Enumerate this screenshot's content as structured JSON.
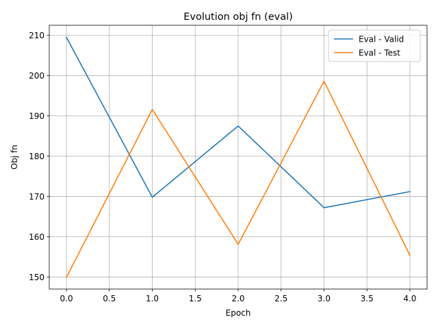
{
  "chart_data": {
    "type": "line",
    "title": "Evolution obj fn (eval)",
    "xlabel": "Epoch",
    "ylabel": "Obj fn",
    "xlim": [
      -0.2,
      4.2
    ],
    "ylim": [
      147.0,
      212.5
    ],
    "grid": true,
    "legend_position": "top-right",
    "x_ticks": [
      "0.0",
      "0.5",
      "1.0",
      "1.5",
      "2.0",
      "2.5",
      "3.0",
      "3.5",
      "4.0"
    ],
    "y_ticks": [
      "150",
      "160",
      "170",
      "180",
      "190",
      "200",
      "210"
    ],
    "x": [
      0,
      1,
      2,
      3,
      4
    ],
    "series": [
      {
        "name": "Eval - Valid",
        "color": "#1f77b4",
        "values": [
          209.5,
          169.8,
          187.5,
          167.2,
          171.2
        ]
      },
      {
        "name": "Eval - Test",
        "color": "#ff7f0e",
        "values": [
          149.9,
          191.6,
          158.1,
          198.6,
          155.4
        ]
      }
    ]
  }
}
